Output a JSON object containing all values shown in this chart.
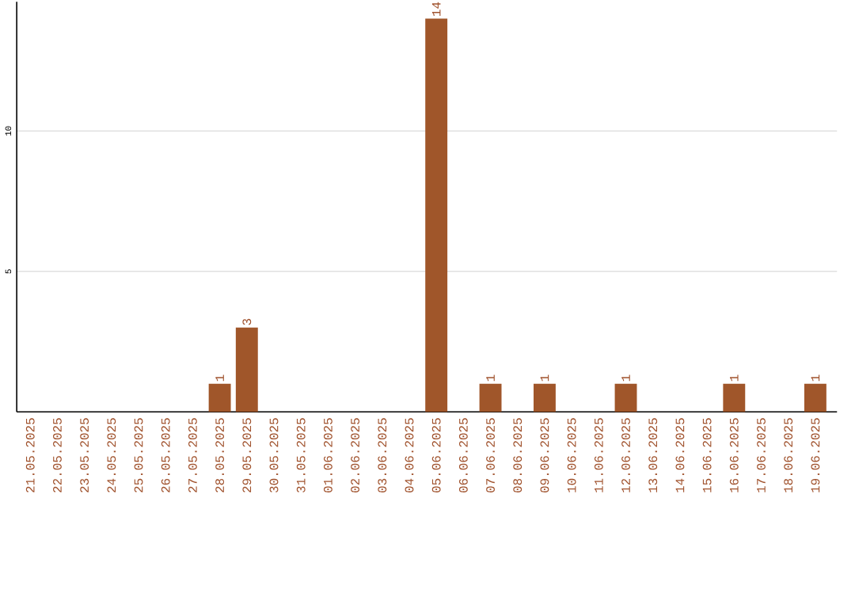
{
  "chart_data": {
    "type": "bar",
    "categories": [
      "21.05.2025",
      "22.05.2025",
      "23.05.2025",
      "24.05.2025",
      "25.05.2025",
      "26.05.2025",
      "27.05.2025",
      "28.05.2025",
      "29.05.2025",
      "30.05.2025",
      "31.05.2025",
      "01.06.2025",
      "02.06.2025",
      "03.06.2025",
      "04.06.2025",
      "05.06.2025",
      "06.06.2025",
      "07.06.2025",
      "08.06.2025",
      "09.06.2025",
      "10.06.2025",
      "11.06.2025",
      "12.06.2025",
      "13.06.2025",
      "14.06.2025",
      "15.06.2025",
      "16.06.2025",
      "17.06.2025",
      "18.06.2025",
      "19.06.2025"
    ],
    "values": [
      0,
      0,
      0,
      0,
      0,
      0,
      0,
      1,
      3,
      0,
      0,
      0,
      0,
      0,
      0,
      14,
      0,
      1,
      0,
      1,
      0,
      0,
      1,
      0,
      0,
      0,
      1,
      0,
      0,
      1
    ],
    "value_labels": [
      null,
      null,
      null,
      null,
      null,
      null,
      null,
      "1",
      "3",
      null,
      null,
      null,
      null,
      null,
      null,
      "14",
      null,
      "1",
      null,
      "1",
      null,
      null,
      "1",
      null,
      null,
      null,
      "1",
      null,
      null,
      "1"
    ],
    "color": "#a0562a",
    "ylim": [
      0,
      14.6
    ],
    "yticks": [
      5,
      10
    ],
    "grid": "y"
  }
}
